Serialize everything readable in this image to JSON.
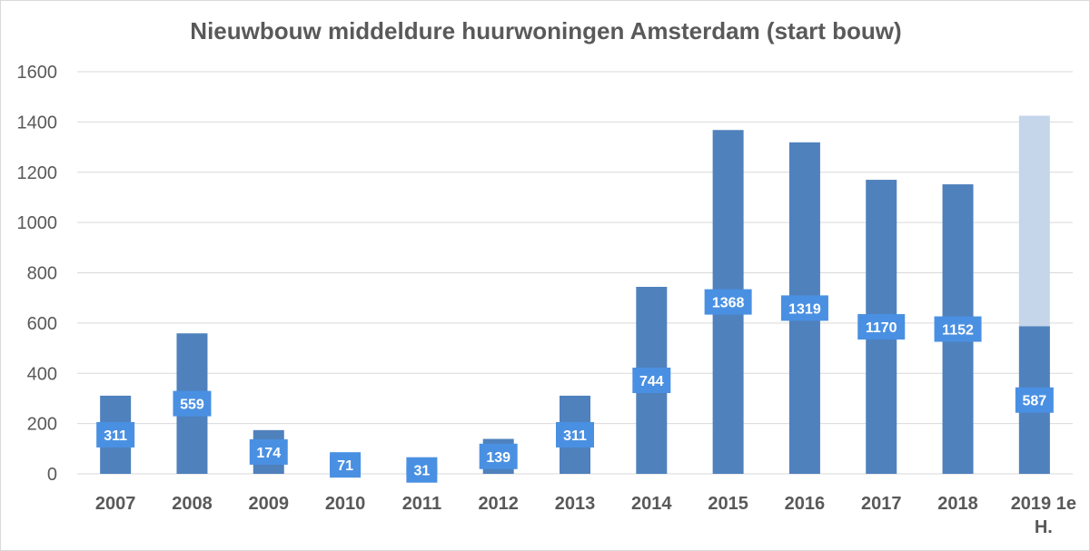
{
  "colors": {
    "bar": "#4f81bd",
    "bar_projected": "#c5d5ea",
    "label_bg": "#4a90e2",
    "label_text": "#ffffff",
    "grid": "#d9d9d9",
    "text": "#595959"
  },
  "chart_data": {
    "type": "bar",
    "title": "Nieuwbouw middeldure huurwoningen Amsterdam (start bouw)",
    "xlabel": "",
    "ylabel": "",
    "ylim": [
      0,
      1600
    ],
    "yticks": [
      0,
      200,
      400,
      600,
      800,
      1000,
      1200,
      1400,
      1600
    ],
    "grid": true,
    "legend": "none",
    "categories": [
      "2007",
      "2008",
      "2009",
      "2010",
      "2011",
      "2012",
      "2013",
      "2014",
      "2015",
      "2016",
      "2017",
      "2018",
      [
        "2019 1e",
        "H."
      ]
    ],
    "values": [
      311,
      559,
      174,
      71,
      31,
      139,
      311,
      744,
      1368,
      1319,
      1170,
      1152,
      587
    ],
    "projected_extension": {
      "category_index": 12,
      "total": 1425
    }
  }
}
